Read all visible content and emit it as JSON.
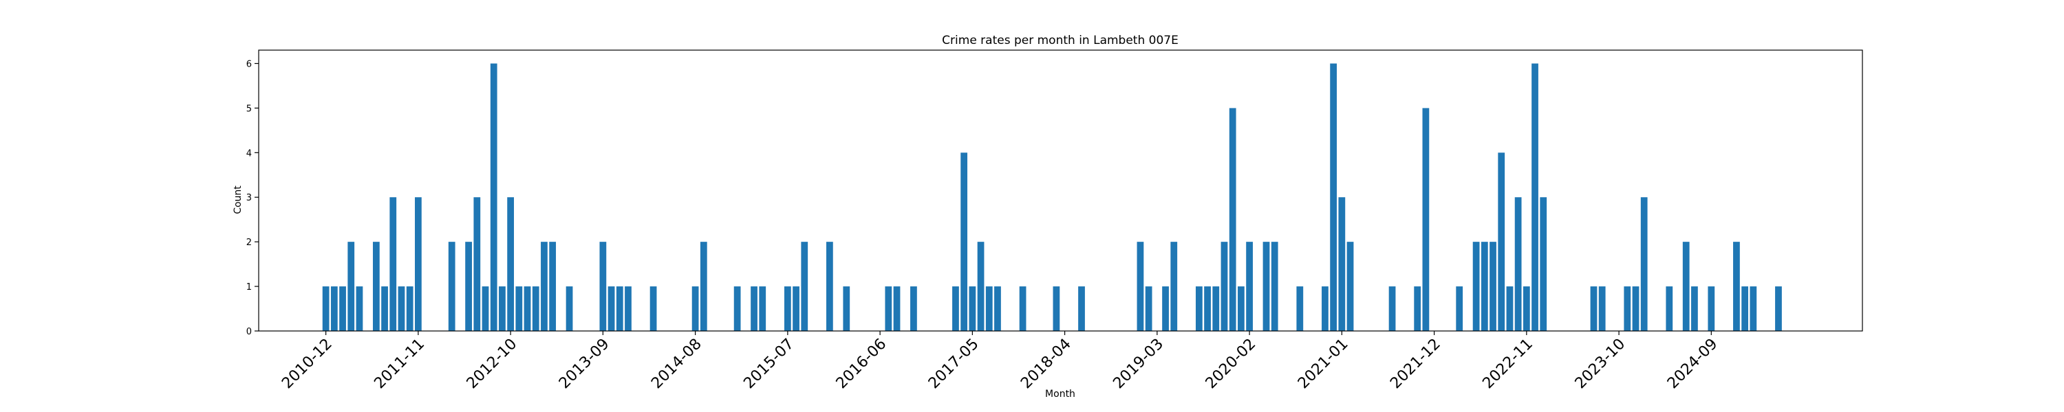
{
  "chart_data": {
    "type": "bar",
    "title": "Crime rates per month in Lambeth 007E",
    "xlabel": "Month",
    "ylabel": "Count",
    "ylim": [
      0,
      6.3
    ],
    "yticks": [
      0,
      1,
      2,
      3,
      4,
      5,
      6
    ],
    "xlim": [
      "2010-04",
      "2026-03"
    ],
    "xticks": [
      "2010-12",
      "2011-11",
      "2012-10",
      "2013-09",
      "2014-08",
      "2015-07",
      "2016-06",
      "2017-05",
      "2018-04",
      "2019-03",
      "2020-02",
      "2021-01",
      "2021-12",
      "2022-11",
      "2023-10",
      "2024-09"
    ],
    "bar_color": "#1f77b4",
    "grid": false,
    "legend": "none",
    "x": [
      "2010-12",
      "2011-01",
      "2011-02",
      "2011-03",
      "2011-04",
      "2011-06",
      "2011-07",
      "2011-08",
      "2011-09",
      "2011-10",
      "2011-11",
      "2012-03",
      "2012-05",
      "2012-06",
      "2012-07",
      "2012-08",
      "2012-09",
      "2012-10",
      "2012-11",
      "2012-12",
      "2013-01",
      "2013-02",
      "2013-03",
      "2013-05",
      "2013-09",
      "2013-10",
      "2013-11",
      "2013-12",
      "2014-03",
      "2014-08",
      "2014-09",
      "2015-01",
      "2015-03",
      "2015-04",
      "2015-07",
      "2015-08",
      "2015-09",
      "2015-12",
      "2016-02",
      "2016-07",
      "2016-08",
      "2016-10",
      "2017-03",
      "2017-04",
      "2017-05",
      "2017-06",
      "2017-07",
      "2017-08",
      "2017-11",
      "2018-03",
      "2018-06",
      "2019-01",
      "2019-02",
      "2019-04",
      "2019-05",
      "2019-08",
      "2019-09",
      "2019-10",
      "2019-11",
      "2019-12",
      "2020-01",
      "2020-02",
      "2020-04",
      "2020-05",
      "2020-08",
      "2020-11",
      "2020-12",
      "2021-01",
      "2021-02",
      "2021-07",
      "2021-10",
      "2021-11",
      "2022-03",
      "2022-05",
      "2022-06",
      "2022-07",
      "2022-08",
      "2022-09",
      "2022-10",
      "2022-11",
      "2022-12",
      "2023-01",
      "2023-07",
      "2023-08",
      "2023-11",
      "2023-12",
      "2024-01",
      "2024-04",
      "2024-06",
      "2024-07",
      "2024-09",
      "2024-12",
      "2025-01",
      "2025-02",
      "2025-05"
    ],
    "values": [
      1,
      1,
      1,
      2,
      1,
      2,
      1,
      3,
      1,
      1,
      3,
      2,
      2,
      3,
      1,
      6,
      1,
      3,
      1,
      1,
      1,
      2,
      2,
      1,
      2,
      1,
      1,
      1,
      1,
      1,
      2,
      1,
      1,
      1,
      1,
      1,
      2,
      2,
      1,
      1,
      1,
      1,
      1,
      4,
      1,
      2,
      1,
      1,
      1,
      1,
      1,
      2,
      1,
      1,
      2,
      1,
      1,
      1,
      2,
      5,
      1,
      2,
      2,
      2,
      1,
      1,
      6,
      3,
      2,
      1,
      1,
      5,
      1,
      2,
      2,
      2,
      4,
      1,
      3,
      1,
      6,
      3,
      1,
      1,
      1,
      1,
      3,
      1,
      2,
      1,
      1,
      2,
      1,
      1,
      1
    ]
  }
}
